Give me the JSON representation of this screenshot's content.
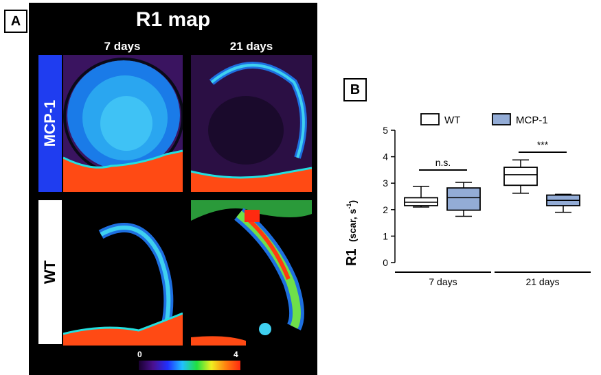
{
  "panel_a": {
    "label": "A",
    "title": "R1 map",
    "col_labels": [
      "7 days",
      "21 days"
    ],
    "row_labels": [
      "MCP-1",
      "WT"
    ],
    "colorbar": {
      "min": "0",
      "max": "4"
    }
  },
  "panel_b": {
    "label": "B"
  },
  "chart_data": {
    "type": "box",
    "categories": [
      "7 days",
      "21 days"
    ],
    "ylabel_main": "R1",
    "ylabel_unit": "(scar, s",
    "ylabel_sup": "-1",
    "ylabel_close": ")",
    "ylim": [
      0,
      5
    ],
    "yticks": [
      0,
      1,
      2,
      3,
      4,
      5
    ],
    "legend_position": "top",
    "series": [
      {
        "name": "WT",
        "color": "#ffffff",
        "boxes": [
          {
            "min": 2.1,
            "q1": 2.15,
            "median": 2.28,
            "q3": 2.45,
            "max": 2.88
          },
          {
            "min": 2.62,
            "q1": 2.92,
            "median": 3.32,
            "q3": 3.6,
            "max": 3.88
          }
        ]
      },
      {
        "name": "MCP-1",
        "color": "#93acd6",
        "boxes": [
          {
            "min": 1.75,
            "q1": 1.98,
            "median": 2.45,
            "q3": 2.82,
            "max": 3.03
          },
          {
            "min": 1.9,
            "q1": 2.15,
            "median": 2.35,
            "q3": 2.55,
            "max": 2.58
          }
        ]
      }
    ],
    "annotations": [
      {
        "text": "n.s.",
        "category": "7 days"
      },
      {
        "text": "***",
        "category": "21 days"
      }
    ]
  }
}
